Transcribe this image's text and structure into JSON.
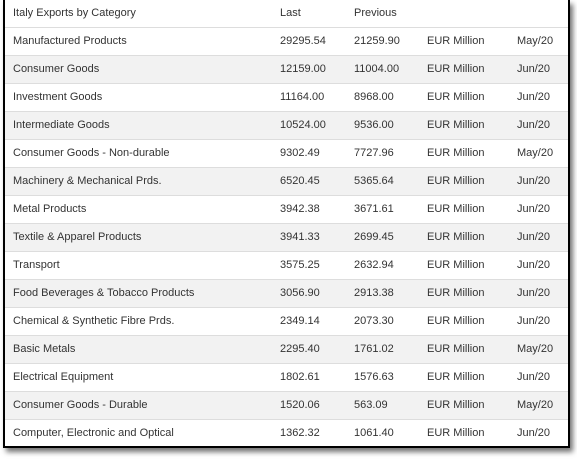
{
  "table": {
    "headers": {
      "category": "Italy Exports by Category",
      "last": "Last",
      "previous": "Previous",
      "unit": "",
      "date": ""
    },
    "rows": [
      {
        "category": "Manufactured Products",
        "last": "29295.54",
        "previous": "21259.90",
        "unit": "EUR Million",
        "date": "May/20"
      },
      {
        "category": "Consumer Goods",
        "last": "12159.00",
        "previous": "11004.00",
        "unit": "EUR Million",
        "date": "Jun/20"
      },
      {
        "category": "Investment Goods",
        "last": "11164.00",
        "previous": "8968.00",
        "unit": "EUR Million",
        "date": "Jun/20"
      },
      {
        "category": "Intermediate Goods",
        "last": "10524.00",
        "previous": "9536.00",
        "unit": "EUR Million",
        "date": "Jun/20"
      },
      {
        "category": "Consumer Goods - Non-durable",
        "last": "9302.49",
        "previous": "7727.96",
        "unit": "EUR Million",
        "date": "May/20"
      },
      {
        "category": "Machinery & Mechanical Prds.",
        "last": "6520.45",
        "previous": "5365.64",
        "unit": "EUR Million",
        "date": "Jun/20"
      },
      {
        "category": "Metal Products",
        "last": "3942.38",
        "previous": "3671.61",
        "unit": "EUR Million",
        "date": "Jun/20"
      },
      {
        "category": "Textile & Apparel Products",
        "last": "3941.33",
        "previous": "2699.45",
        "unit": "EUR Million",
        "date": "Jun/20"
      },
      {
        "category": "Transport",
        "last": "3575.25",
        "previous": "2632.94",
        "unit": "EUR Million",
        "date": "Jun/20"
      },
      {
        "category": "Food Beverages & Tobacco Products",
        "last": "3056.90",
        "previous": "2913.38",
        "unit": "EUR Million",
        "date": "Jun/20"
      },
      {
        "category": "Chemical & Synthetic Fibre Prds.",
        "last": "2349.14",
        "previous": "2073.30",
        "unit": "EUR Million",
        "date": "Jun/20"
      },
      {
        "category": "Basic Metals",
        "last": "2295.40",
        "previous": "1761.02",
        "unit": "EUR Million",
        "date": "May/20"
      },
      {
        "category": "Electrical Equipment",
        "last": "1802.61",
        "previous": "1576.63",
        "unit": "EUR Million",
        "date": "Jun/20"
      },
      {
        "category": "Consumer Goods - Durable",
        "last": "1520.06",
        "previous": "563.09",
        "unit": "EUR Million",
        "date": "May/20"
      },
      {
        "category": "Computer, Electronic and Optical",
        "last": "1362.32",
        "previous": "1061.40",
        "unit": "EUR Million",
        "date": "Jun/20"
      }
    ]
  }
}
